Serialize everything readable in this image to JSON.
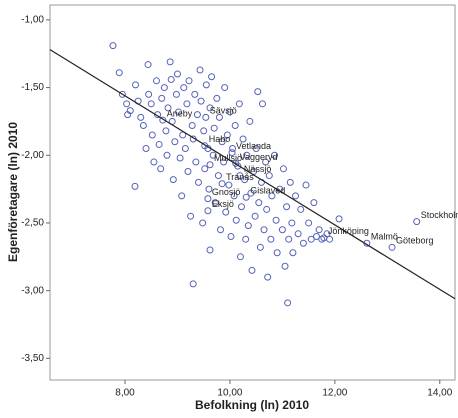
{
  "chart_data": {
    "type": "scatter",
    "x_label": "Befolkning (ln) 2010",
    "y_label": "Egenföretagare (ln) 2010",
    "xlim": [
      6.57,
      14.29
    ],
    "ylim": [
      -3.66,
      -0.89
    ],
    "xticks": [
      {
        "value": 8,
        "label": "8,00"
      },
      {
        "value": 10,
        "label": "10,00"
      },
      {
        "value": 12,
        "label": "12,00"
      },
      {
        "value": 14,
        "label": "14,00"
      }
    ],
    "yticks": [
      {
        "value": -1,
        "label": "-1,00"
      },
      {
        "value": -1.5,
        "label": "-1,50"
      },
      {
        "value": -2,
        "label": "-2,00"
      },
      {
        "value": -2.5,
        "label": "-2,50"
      },
      {
        "value": -3,
        "label": "-3,00"
      },
      {
        "value": -3.5,
        "label": "-3,50"
      }
    ],
    "marker_color": "#5563b8",
    "line_color": "#222222",
    "fit_line": {
      "x": [
        6.57,
        14.29
      ],
      "y": [
        -1.22,
        -3.06
      ]
    },
    "series": [
      {
        "x": [
          7.77,
          7.89,
          7.95,
          8.03,
          8.1,
          8.05,
          8.2,
          8.19,
          8.25,
          8.3,
          8.35,
          8.4,
          8.44,
          8.45,
          8.5,
          8.52,
          8.55,
          8.6,
          8.62,
          8.65,
          8.68,
          8.7,
          8.75,
          8.78,
          8.8,
          8.82,
          8.86,
          8.88,
          8.9,
          8.92,
          8.95,
          8.98,
          9.0,
          9.02,
          9.05,
          9.08,
          9.1,
          9.12,
          9.15,
          9.18,
          9.2,
          9.22,
          9.25,
          9.28,
          9.3,
          9.3,
          9.33,
          9.35,
          9.38,
          9.4,
          9.43,
          9.45,
          9.48,
          9.5,
          9.52,
          9.55,
          9.58,
          9.6,
          9.62,
          9.62,
          9.65,
          9.68,
          9.7,
          9.72,
          9.75,
          9.78,
          9.8,
          9.82,
          9.85,
          9.88,
          9.9,
          9.92,
          9.95,
          9.98,
          10.0,
          10.02,
          10.05,
          10.08,
          10.1,
          10.12,
          10.15,
          10.18,
          10.2,
          10.22,
          10.25,
          10.28,
          10.3,
          10.32,
          10.35,
          10.38,
          10.4,
          10.42,
          10.45,
          10.48,
          10.5,
          10.53,
          10.55,
          10.58,
          10.6,
          10.62,
          10.65,
          10.68,
          10.7,
          10.72,
          10.75,
          10.78,
          10.8,
          10.85,
          10.88,
          10.9,
          10.95,
          11.0,
          11.02,
          11.05,
          11.08,
          11.1,
          11.12,
          11.15,
          11.18,
          11.2,
          11.25,
          11.3,
          11.35,
          11.4,
          11.45,
          11.5,
          11.55,
          11.6,
          11.65,
          11.7,
          11.75,
          11.85,
          11.9,
          12.08
        ],
        "values": [
          -1.19,
          -1.39,
          -1.55,
          -1.62,
          -1.67,
          -1.7,
          -1.48,
          -2.23,
          -1.6,
          -1.72,
          -1.78,
          -1.95,
          -1.33,
          -1.55,
          -1.62,
          -1.85,
          -2.05,
          -1.45,
          -1.7,
          -1.92,
          -2.1,
          -1.58,
          -1.5,
          -1.82,
          -2.0,
          -1.65,
          -1.31,
          -1.44,
          -1.75,
          -2.18,
          -1.9,
          -1.55,
          -1.4,
          -1.68,
          -2.02,
          -2.3,
          -1.85,
          -1.5,
          -1.95,
          -1.62,
          -2.12,
          -1.45,
          -2.45,
          -1.78,
          -2.95,
          -1.88,
          -1.55,
          -2.05,
          -1.7,
          -2.2,
          -1.37,
          -1.6,
          -2.5,
          -1.82,
          -2.1,
          -1.48,
          -1.95,
          -2.25,
          -2.7,
          -1.65,
          -1.42,
          -2.0,
          -1.8,
          -2.35,
          -1.58,
          -2.15,
          -1.72,
          -2.55,
          -1.9,
          -2.05,
          -1.5,
          -2.42,
          -1.85,
          -2.22,
          -1.68,
          -2.6,
          -1.95,
          -2.3,
          -1.78,
          -2.48,
          -2.08,
          -1.62,
          -2.75,
          -2.38,
          -1.88,
          -2.18,
          -2.62,
          -2.0,
          -2.52,
          -1.75,
          -2.28,
          -2.85,
          -2.12,
          -2.45,
          -1.95,
          -1.53,
          -2.35,
          -2.68,
          -2.2,
          -1.62,
          -2.55,
          -2.05,
          -2.4,
          -2.9,
          -2.15,
          -2.62,
          -2.3,
          -2.0,
          -2.48,
          -2.72,
          -2.25,
          -2.55,
          -2.1,
          -2.82,
          -2.38,
          -3.09,
          -2.62,
          -2.2,
          -2.5,
          -2.72,
          -2.3,
          -2.58,
          -2.4,
          -2.65,
          -2.22,
          -2.5,
          -2.62,
          -2.35,
          -2.6,
          -2.55,
          -2.62,
          -2.58,
          -2.62,
          -2.47
        ]
      }
    ],
    "labels": [
      {
        "text": "Aneby",
        "x": 8.72,
        "y": -1.74
      },
      {
        "text": "Sävsjö",
        "x": 9.54,
        "y": -1.72
      },
      {
        "text": "Habo",
        "x": 9.52,
        "y": -1.93
      },
      {
        "text": "Vetlanda",
        "x": 10.04,
        "y": -1.98
      },
      {
        "text": "Mullsjö",
        "x": 9.62,
        "y": -2.07
      },
      {
        "text": "Vaggeryd",
        "x": 10.11,
        "y": -2.06
      },
      {
        "text": "Nässjö",
        "x": 10.19,
        "y": -2.15
      },
      {
        "text": "Tranås",
        "x": 9.85,
        "y": -2.21
      },
      {
        "text": "Gnosjö",
        "x": 9.58,
        "y": -2.32
      },
      {
        "text": "Gislaved",
        "x": 10.31,
        "y": -2.31
      },
      {
        "text": "Eksjö",
        "x": 9.58,
        "y": -2.41
      },
      {
        "text": "Jönköping",
        "x": 11.79,
        "y": -2.61
      },
      {
        "text": "Malmö",
        "x": 12.61,
        "y": -2.65
      },
      {
        "text": "Göteborg",
        "x": 13.09,
        "y": -2.68
      },
      {
        "text": "Stockholm",
        "x": 13.56,
        "y": -2.49
      }
    ]
  }
}
